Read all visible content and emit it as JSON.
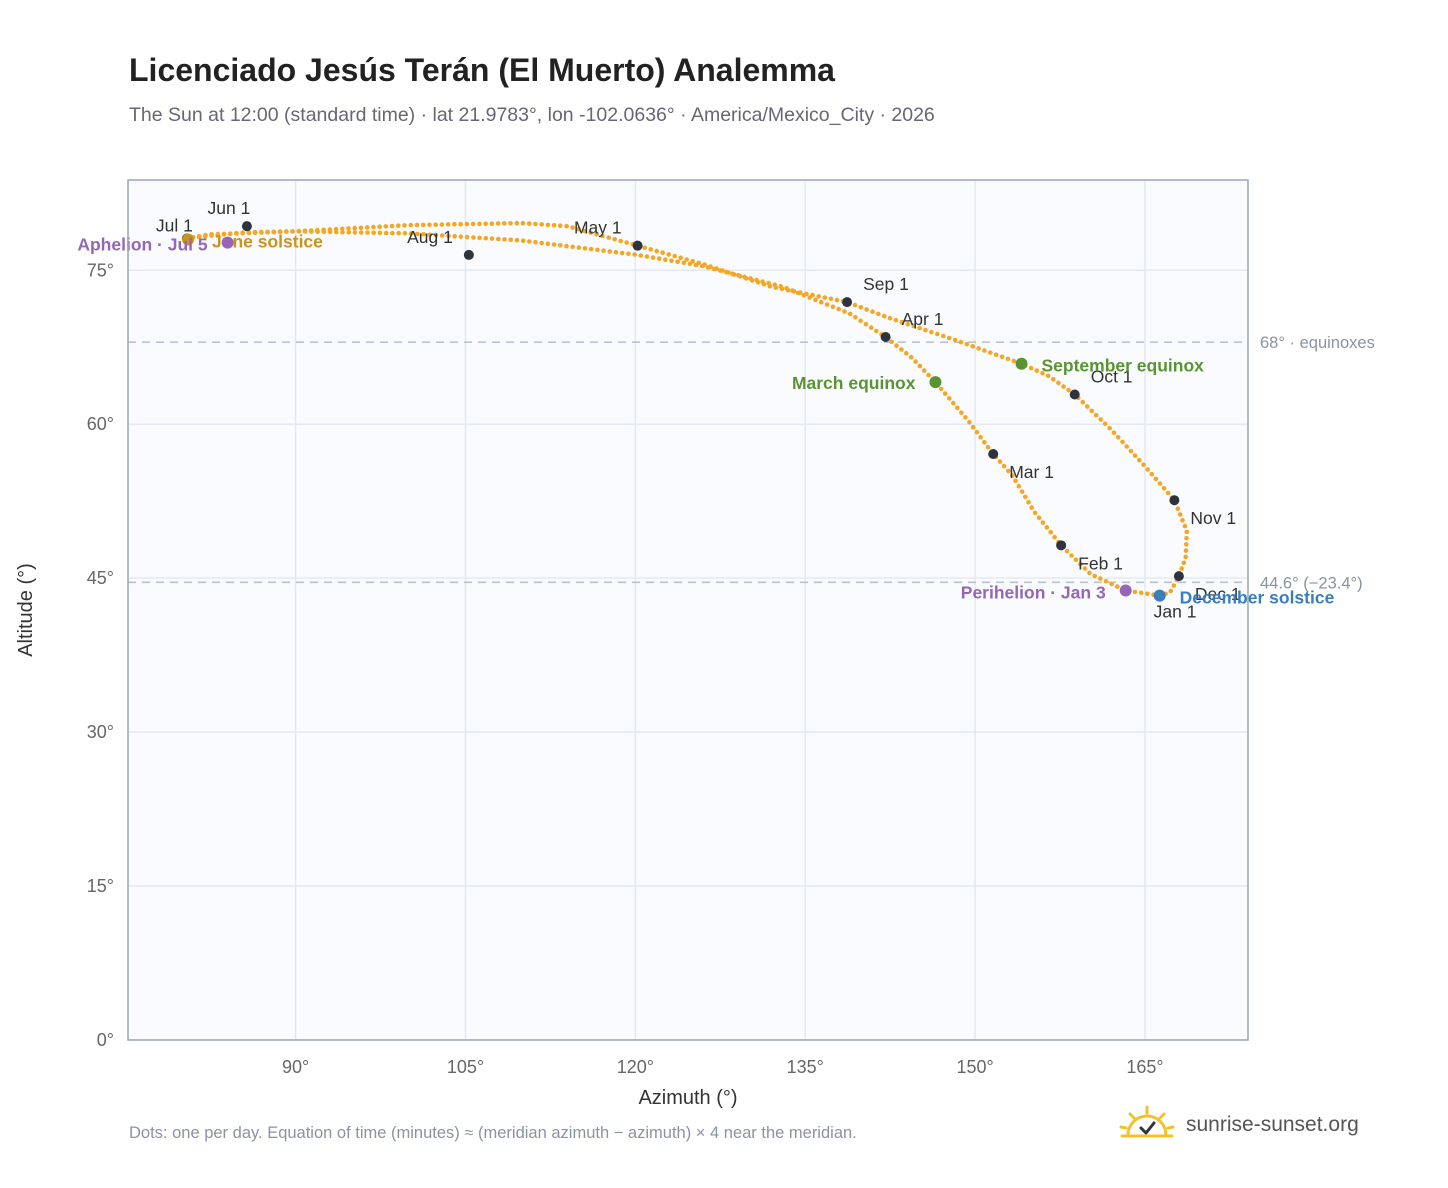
{
  "header": {
    "title": "Licenciado Jesús Terán (El Muerto) Analemma",
    "subtitle": "The Sun at 12:00 (standard time) · lat 21.9783°, lon -102.0636° · America/Mexico_City · 2026"
  },
  "footer": {
    "note": "Dots: one per day. Equation of time (minutes) ≈ (meridian azimuth − azimuth) × 4 near the meridian.",
    "brand": "sunrise-sunset.org"
  },
  "colors": {
    "curve": "#f5a623",
    "month_marker": "#2d3440",
    "equinox": "#5a9432",
    "june_solstice": "#c8951a",
    "december_solstice": "#3a7ec0",
    "apsis": "#9466b5",
    "reference_line": "#b8c2d1",
    "plot_bg": "#f9fbfe",
    "grid": "#e4e9f0"
  },
  "icons": {
    "brand": "sun-icon"
  },
  "chart_data": {
    "type": "scatter",
    "xlabel": "Azimuth (°)",
    "ylabel": "Altitude (°)",
    "xlim": [
      75.2,
      174.1
    ],
    "ylim": [
      0,
      83.8
    ],
    "xticks": [
      90,
      105,
      120,
      135,
      150,
      165
    ],
    "yticks": [
      0,
      15,
      30,
      45,
      60,
      75
    ],
    "x_tick_labels": [
      "90°",
      "105°",
      "120°",
      "135°",
      "150°",
      "165°"
    ],
    "y_tick_labels": [
      "0°",
      "15°",
      "30°",
      "45°",
      "60°",
      "75°"
    ],
    "grid": true,
    "reference_lines": [
      {
        "y": 68.0,
        "label": "68° · equinoxes"
      },
      {
        "y": 44.6,
        "label": "44.6° (−23.4°)"
      }
    ],
    "path": [
      [
        166.3,
        43.3
      ],
      [
        163.3,
        43.8
      ],
      [
        160.2,
        45.4
      ],
      [
        157.6,
        48.2
      ],
      [
        155.2,
        51.5
      ],
      [
        153.3,
        55.0
      ],
      [
        151.6,
        57.1
      ],
      [
        149.5,
        60.2
      ],
      [
        147.2,
        63.2
      ],
      [
        146.5,
        64.1
      ],
      [
        144.4,
        66.5
      ],
      [
        142.1,
        68.5
      ],
      [
        138.9,
        70.8
      ],
      [
        133.0,
        73.4
      ],
      [
        126.0,
        75.4
      ],
      [
        120.2,
        76.5
      ],
      [
        110.0,
        77.9
      ],
      [
        100.0,
        78.6
      ],
      [
        90.0,
        78.8
      ],
      [
        85.0,
        78.6
      ],
      [
        82.4,
        78.5
      ],
      [
        80.4,
        78.1
      ],
      [
        82.7,
        78.4
      ],
      [
        85.7,
        78.7
      ],
      [
        90.0,
        78.8
      ],
      [
        100.0,
        79.4
      ],
      [
        110.0,
        79.6
      ],
      [
        114.0,
        79.3
      ],
      [
        120.2,
        77.4
      ],
      [
        126.0,
        75.6
      ],
      [
        132.0,
        73.4
      ],
      [
        138.7,
        71.9
      ],
      [
        142.3,
        70.4
      ],
      [
        148.0,
        68.3
      ],
      [
        154.1,
        65.9
      ],
      [
        156.5,
        64.7
      ],
      [
        158.8,
        62.9
      ],
      [
        162.0,
        59.5
      ],
      [
        165.0,
        55.9
      ],
      [
        167.6,
        52.6
      ],
      [
        168.7,
        49.6
      ],
      [
        168.6,
        47.0
      ],
      [
        168.0,
        45.2
      ],
      [
        167.2,
        43.6
      ],
      [
        166.3,
        43.3
      ]
    ],
    "month_markers": [
      {
        "label": "Jan 1",
        "x": 166.3,
        "y": 43.3
      },
      {
        "label": "Feb 1",
        "x": 157.6,
        "y": 48.2
      },
      {
        "label": "Mar 1",
        "x": 151.6,
        "y": 57.1
      },
      {
        "label": "Apr 1",
        "x": 142.1,
        "y": 68.5
      },
      {
        "label": "May 1",
        "x": 120.2,
        "y": 77.4
      },
      {
        "label": "Jun 1",
        "x": 85.7,
        "y": 79.3
      },
      {
        "label": "Jul 1",
        "x": 80.4,
        "y": 78.1
      },
      {
        "label": "Aug 1",
        "x": 105.3,
        "y": 76.5
      },
      {
        "label": "Sep 1",
        "x": 138.7,
        "y": 71.9
      },
      {
        "label": "Oct 1",
        "x": 158.8,
        "y": 62.9
      },
      {
        "label": "Nov 1",
        "x": 167.6,
        "y": 52.6
      },
      {
        "label": "Dec 1",
        "x": 168.0,
        "y": 45.2
      }
    ],
    "events": [
      {
        "label": "March equinox",
        "x": 146.5,
        "y": 64.1,
        "color_key": "equinox"
      },
      {
        "label": "September equinox",
        "x": 154.1,
        "y": 65.9,
        "color_key": "equinox"
      },
      {
        "label": "June solstice",
        "x": 80.5,
        "y": 78.0,
        "color_key": "june_solstice"
      },
      {
        "label": "December solstice",
        "x": 166.3,
        "y": 43.3,
        "color_key": "december_solstice"
      },
      {
        "label": "Aphelion · Jul 5",
        "x": 84.0,
        "y": 77.7,
        "color_key": "apsis"
      },
      {
        "label": "Perihelion · Jan 3",
        "x": 163.3,
        "y": 43.8,
        "color_key": "apsis"
      }
    ]
  }
}
